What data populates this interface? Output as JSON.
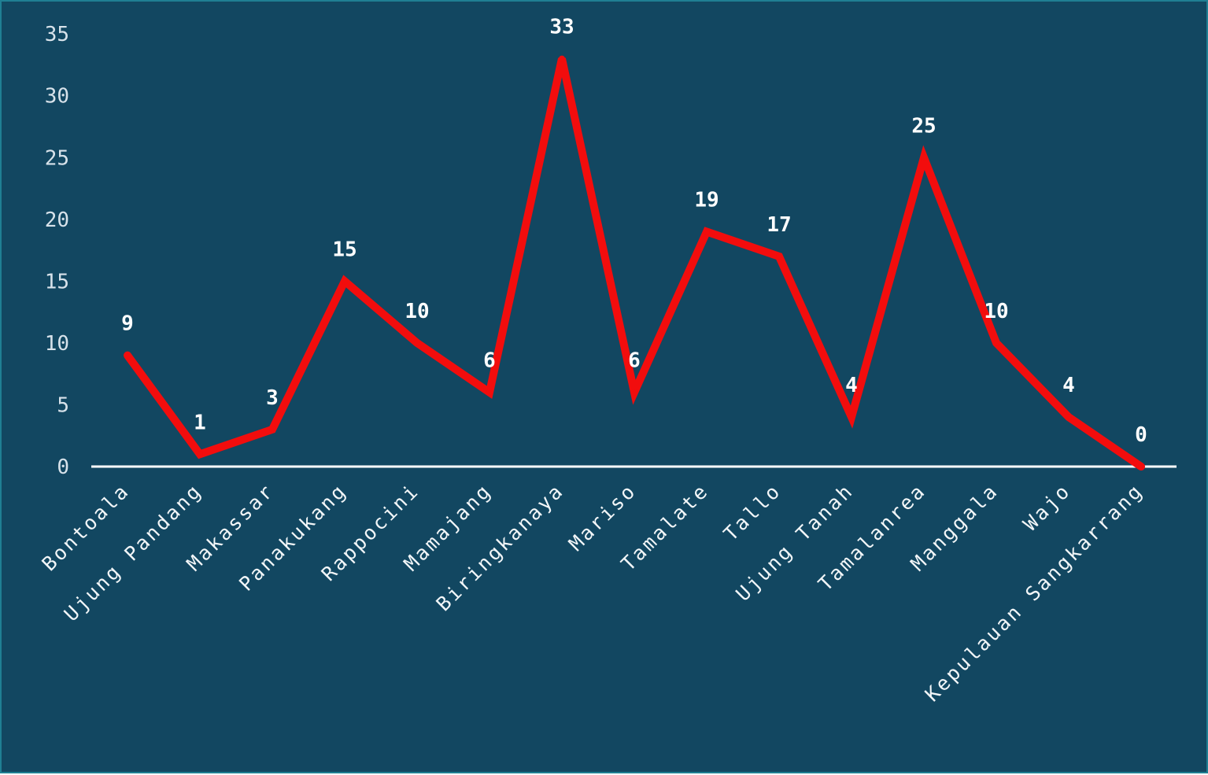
{
  "chart_data": {
    "type": "line",
    "title": "",
    "xlabel": "",
    "ylabel": "",
    "categories": [
      "Bontoala",
      "Ujung Pandang",
      "Makassar",
      "Panakukang",
      "Rappocini",
      "Mamajang",
      "Biringkanaya",
      "Mariso",
      "Tamalate",
      "Tallo",
      "Ujung Tanah",
      "Tamalanrea",
      "Manggala",
      "Wajo",
      "Kepulauan Sangkarrang"
    ],
    "values": [
      9,
      1,
      3,
      15,
      10,
      6,
      33,
      6,
      19,
      17,
      4,
      25,
      10,
      4,
      0
    ],
    "data_labels": [
      "9",
      "1",
      "3",
      "15",
      "10",
      "6",
      "33",
      "6",
      "19",
      "17",
      "4",
      "25",
      "10",
      "4",
      "0"
    ],
    "y_ticks": [
      "0",
      "5",
      "10",
      "15",
      "20",
      "25",
      "30",
      "35"
    ],
    "ylim": [
      0,
      35
    ],
    "grid": false,
    "legend": "none",
    "colors": {
      "background": "#124761",
      "border": "#1f7f93",
      "line": "#f20d0d",
      "axis": "#ffffff",
      "drop_lines": "#ffffff",
      "text": "#f2f6f8"
    }
  }
}
